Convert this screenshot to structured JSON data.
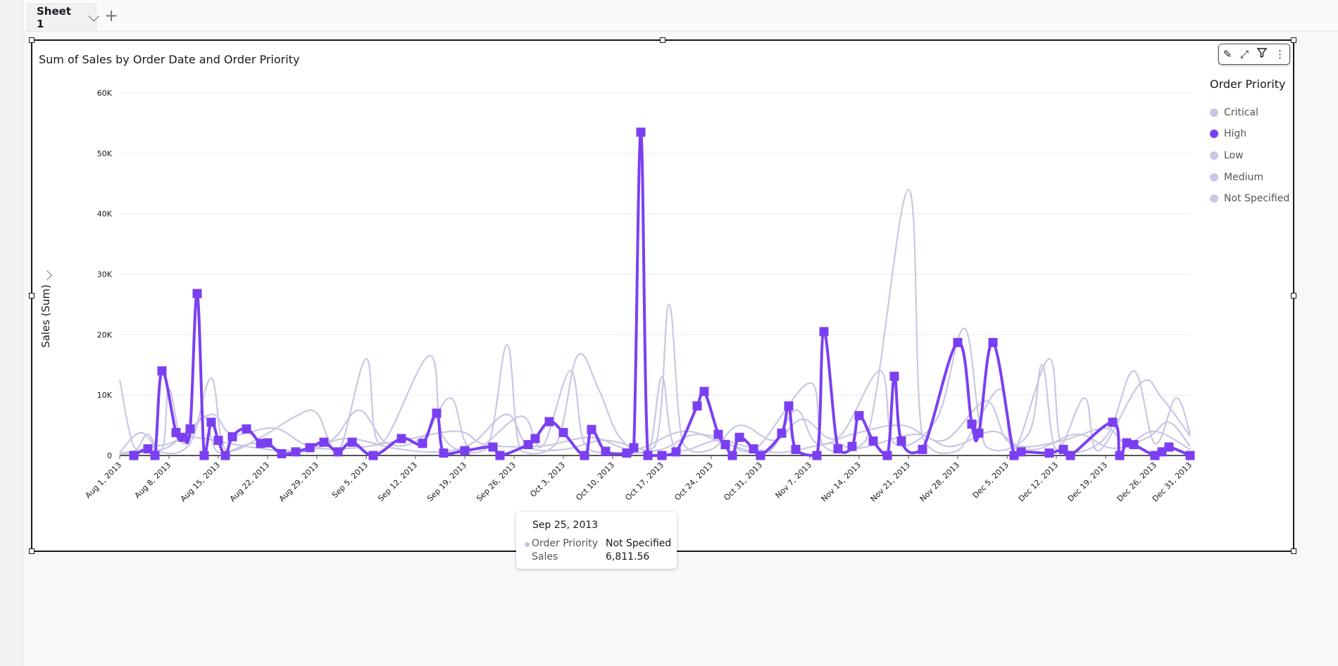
{
  "tabs": {
    "sheet_label": "Sheet 1",
    "add_label": "+"
  },
  "visual": {
    "title": "Sum of Sales by Order Date and Order Priority",
    "toolbar": {
      "edit_icon": "pencil-icon",
      "expand_icon": "expand-icon",
      "filter_icon": "filter-icon",
      "menu_icon": "more-vertical-icon"
    }
  },
  "tooltip": {
    "date": "Sep 25, 2013",
    "field1_label": "Order Priority",
    "field1_value": "Not Specified",
    "field2_label": "Sales",
    "field2_value": "6,811.56",
    "dot_color": "#c5c3e0"
  },
  "colors": {
    "highlight": "#7b3ff2",
    "muted": "#c9c7e3",
    "axis": "#555555",
    "grid": "#ececf3"
  },
  "chart_data": {
    "type": "line",
    "title": "Sum of Sales by Order Date and Order Priority",
    "xlabel": "",
    "ylabel": "Sales (Sum)",
    "ylim": [
      0,
      60000
    ],
    "yticks": [
      {
        "v": 0,
        "label": "0"
      },
      {
        "v": 10000,
        "label": "10K"
      },
      {
        "v": 20000,
        "label": "20K"
      },
      {
        "v": 30000,
        "label": "30K"
      },
      {
        "v": 40000,
        "label": "40K"
      },
      {
        "v": 50000,
        "label": "50K"
      },
      {
        "v": 60000,
        "label": "60K"
      }
    ],
    "x_unit": "days since Aug 1, 2013",
    "xlim": [
      0,
      152
    ],
    "xticks": [
      {
        "d": 0,
        "label": "Aug 1, 2013"
      },
      {
        "d": 7,
        "label": "Aug 8, 2013"
      },
      {
        "d": 14,
        "label": "Aug 15, 2013"
      },
      {
        "d": 21,
        "label": "Aug 22, 2013"
      },
      {
        "d": 28,
        "label": "Aug 29, 2013"
      },
      {
        "d": 35,
        "label": "Sep 5, 2013"
      },
      {
        "d": 42,
        "label": "Sep 12, 2013"
      },
      {
        "d": 49,
        "label": "Sep 19, 2013"
      },
      {
        "d": 56,
        "label": "Sep 26, 2013"
      },
      {
        "d": 63,
        "label": "Oct 3, 2013"
      },
      {
        "d": 70,
        "label": "Oct 10, 2013"
      },
      {
        "d": 77,
        "label": "Oct 17, 2013"
      },
      {
        "d": 84,
        "label": "Oct 24, 2013"
      },
      {
        "d": 91,
        "label": "Oct 31, 2013"
      },
      {
        "d": 98,
        "label": "Nov 7, 2013"
      },
      {
        "d": 105,
        "label": "Nov 14, 2013"
      },
      {
        "d": 112,
        "label": "Nov 21, 2013"
      },
      {
        "d": 119,
        "label": "Nov 28, 2013"
      },
      {
        "d": 126,
        "label": "Dec 5, 2013"
      },
      {
        "d": 133,
        "label": "Dec 12, 2013"
      },
      {
        "d": 140,
        "label": "Dec 19, 2013"
      },
      {
        "d": 147,
        "label": "Dec 26, 2013"
      },
      {
        "d": 152,
        "label": "Dec 31, 2013"
      }
    ],
    "legend": {
      "title": "Order Priority",
      "placement": "right"
    },
    "series": [
      {
        "name": "Critical",
        "highlighted": false,
        "points": [
          [
            0,
            12500
          ],
          [
            2,
            1500
          ],
          [
            4,
            3500
          ],
          [
            6,
            500
          ],
          [
            10,
            2000
          ],
          [
            13,
            12800
          ],
          [
            15,
            1000
          ],
          [
            20,
            3000
          ],
          [
            25,
            6500
          ],
          [
            28,
            7000
          ],
          [
            31,
            500
          ],
          [
            35,
            16000
          ],
          [
            37,
            2000
          ],
          [
            44,
            16500
          ],
          [
            46,
            3000
          ],
          [
            52,
            1000
          ],
          [
            55,
            18300
          ],
          [
            57,
            800
          ],
          [
            62,
            2000
          ],
          [
            65,
            16500
          ],
          [
            68,
            11000
          ],
          [
            71,
            3000
          ],
          [
            75,
            500
          ],
          [
            77,
            13000
          ],
          [
            79,
            1000
          ],
          [
            85,
            2500
          ],
          [
            90,
            800
          ],
          [
            98,
            12000
          ],
          [
            100,
            1500
          ],
          [
            106,
            2500
          ],
          [
            112,
            44000
          ],
          [
            114,
            3000
          ],
          [
            119,
            800
          ],
          [
            125,
            11000
          ],
          [
            127,
            1000
          ],
          [
            132,
            16000
          ],
          [
            134,
            1000
          ],
          [
            140,
            3000
          ],
          [
            144,
            14000
          ],
          [
            147,
            2000
          ],
          [
            150,
            9500
          ],
          [
            152,
            3500
          ]
        ]
      },
      {
        "name": "High",
        "highlighted": true,
        "points": [
          [
            2,
            0
          ],
          [
            4,
            1100
          ],
          [
            5,
            0
          ],
          [
            6,
            14000
          ],
          [
            8,
            3800
          ],
          [
            9,
            3000
          ],
          [
            10,
            4400
          ],
          [
            11,
            26800
          ],
          [
            12,
            0
          ],
          [
            13,
            5500
          ],
          [
            14,
            2500
          ],
          [
            15,
            0
          ],
          [
            16,
            3100
          ],
          [
            18,
            4400
          ],
          [
            20,
            2000
          ],
          [
            21,
            2100
          ],
          [
            23,
            300
          ],
          [
            25,
            600
          ],
          [
            27,
            1300
          ],
          [
            29,
            2200
          ],
          [
            31,
            600
          ],
          [
            33,
            2200
          ],
          [
            36,
            0
          ],
          [
            40,
            2800
          ],
          [
            43,
            2000
          ],
          [
            45,
            7000
          ],
          [
            46,
            400
          ],
          [
            49,
            800
          ],
          [
            53,
            1400
          ],
          [
            54,
            0
          ],
          [
            58,
            1800
          ],
          [
            59,
            2800
          ],
          [
            61,
            5600
          ],
          [
            63,
            3800
          ],
          [
            66,
            0
          ],
          [
            67,
            4300
          ],
          [
            69,
            700
          ],
          [
            72,
            400
          ],
          [
            73,
            1300
          ],
          [
            74,
            53500
          ],
          [
            75,
            0
          ],
          [
            77,
            0
          ],
          [
            79,
            600
          ],
          [
            82,
            8200
          ],
          [
            83,
            10600
          ],
          [
            85,
            3500
          ],
          [
            86,
            1800
          ],
          [
            87,
            0
          ],
          [
            88,
            3000
          ],
          [
            90,
            1100
          ],
          [
            91,
            0
          ],
          [
            94,
            3700
          ],
          [
            95,
            8200
          ],
          [
            96,
            1000
          ],
          [
            99,
            0
          ],
          [
            100,
            20500
          ],
          [
            102,
            1100
          ],
          [
            104,
            1500
          ],
          [
            105,
            6600
          ],
          [
            107,
            2400
          ],
          [
            109,
            0
          ],
          [
            110,
            13100
          ],
          [
            111,
            2400
          ],
          [
            114,
            1000
          ],
          [
            119,
            18700
          ],
          [
            121,
            5200
          ],
          [
            122,
            3700
          ],
          [
            124,
            18700
          ],
          [
            127,
            0
          ],
          [
            128,
            600
          ],
          [
            132,
            400
          ],
          [
            134,
            1000
          ],
          [
            135,
            0
          ],
          [
            141,
            5500
          ],
          [
            142,
            0
          ],
          [
            143,
            2100
          ],
          [
            144,
            1800
          ],
          [
            147,
            0
          ],
          [
            148,
            600
          ],
          [
            149,
            1400
          ],
          [
            152,
            0
          ]
        ]
      },
      {
        "name": "Low",
        "highlighted": false,
        "points": [
          [
            0,
            500
          ],
          [
            3,
            3800
          ],
          [
            6,
            1000
          ],
          [
            7,
            11000
          ],
          [
            9,
            2000
          ],
          [
            12,
            6500
          ],
          [
            14,
            500
          ],
          [
            19,
            2000
          ],
          [
            24,
            800
          ],
          [
            30,
            2500
          ],
          [
            34,
            7500
          ],
          [
            38,
            2000
          ],
          [
            43,
            3000
          ],
          [
            47,
            9500
          ],
          [
            50,
            1000
          ],
          [
            57,
            6500
          ],
          [
            60,
            1500
          ],
          [
            64,
            14000
          ],
          [
            66,
            2000
          ],
          [
            70,
            500
          ],
          [
            76,
            1500
          ],
          [
            78,
            25000
          ],
          [
            80,
            2000
          ],
          [
            84,
            1000
          ],
          [
            88,
            5000
          ],
          [
            93,
            2500
          ],
          [
            97,
            6000
          ],
          [
            102,
            3000
          ],
          [
            108,
            14000
          ],
          [
            110,
            2000
          ],
          [
            116,
            6000
          ],
          [
            120,
            21000
          ],
          [
            123,
            1500
          ],
          [
            129,
            3500
          ],
          [
            131,
            15000
          ],
          [
            133,
            1000
          ],
          [
            137,
            9500
          ],
          [
            139,
            800
          ],
          [
            145,
            12000
          ],
          [
            148,
            9500
          ],
          [
            152,
            3200
          ]
        ]
      },
      {
        "name": "Medium",
        "highlighted": false,
        "points": [
          [
            0,
            300
          ],
          [
            5,
            1500
          ],
          [
            8,
            2500
          ],
          [
            13,
            6800
          ],
          [
            16,
            3500
          ],
          [
            22,
            4500
          ],
          [
            27,
            1500
          ],
          [
            33,
            1200
          ],
          [
            40,
            2500
          ],
          [
            48,
            4000
          ],
          [
            52,
            1800
          ],
          [
            60,
            1600
          ],
          [
            67,
            3000
          ],
          [
            73,
            1000
          ],
          [
            80,
            4000
          ],
          [
            86,
            2000
          ],
          [
            92,
            500
          ],
          [
            96,
            7500
          ],
          [
            99,
            2000
          ],
          [
            104,
            3500
          ],
          [
            111,
            5000
          ],
          [
            117,
            2500
          ],
          [
            123,
            9000
          ],
          [
            126,
            2500
          ],
          [
            130,
            1000
          ],
          [
            136,
            3500
          ],
          [
            141,
            1200
          ],
          [
            146,
            3000
          ],
          [
            149,
            5500
          ],
          [
            152,
            1500
          ]
        ]
      },
      {
        "name": "Not Specified",
        "highlighted": false,
        "points": [
          [
            0,
            200
          ],
          [
            6,
            1000
          ],
          [
            10,
            3000
          ],
          [
            18,
            1500
          ],
          [
            26,
            600
          ],
          [
            32,
            2800
          ],
          [
            39,
            1200
          ],
          [
            45,
            600
          ],
          [
            50,
            2000
          ],
          [
            55,
            6811.56
          ],
          [
            58,
            1500
          ],
          [
            63,
            1000
          ],
          [
            69,
            2500
          ],
          [
            76,
            800
          ],
          [
            82,
            3500
          ],
          [
            89,
            1500
          ],
          [
            94,
            500
          ],
          [
            101,
            2000
          ],
          [
            105,
            1200
          ],
          [
            113,
            3500
          ],
          [
            118,
            1500
          ],
          [
            124,
            4000
          ],
          [
            128,
            1500
          ],
          [
            134,
            2500
          ],
          [
            140,
            4500
          ],
          [
            143,
            2000
          ],
          [
            147,
            4000
          ],
          [
            152,
            1000
          ]
        ]
      }
    ]
  }
}
